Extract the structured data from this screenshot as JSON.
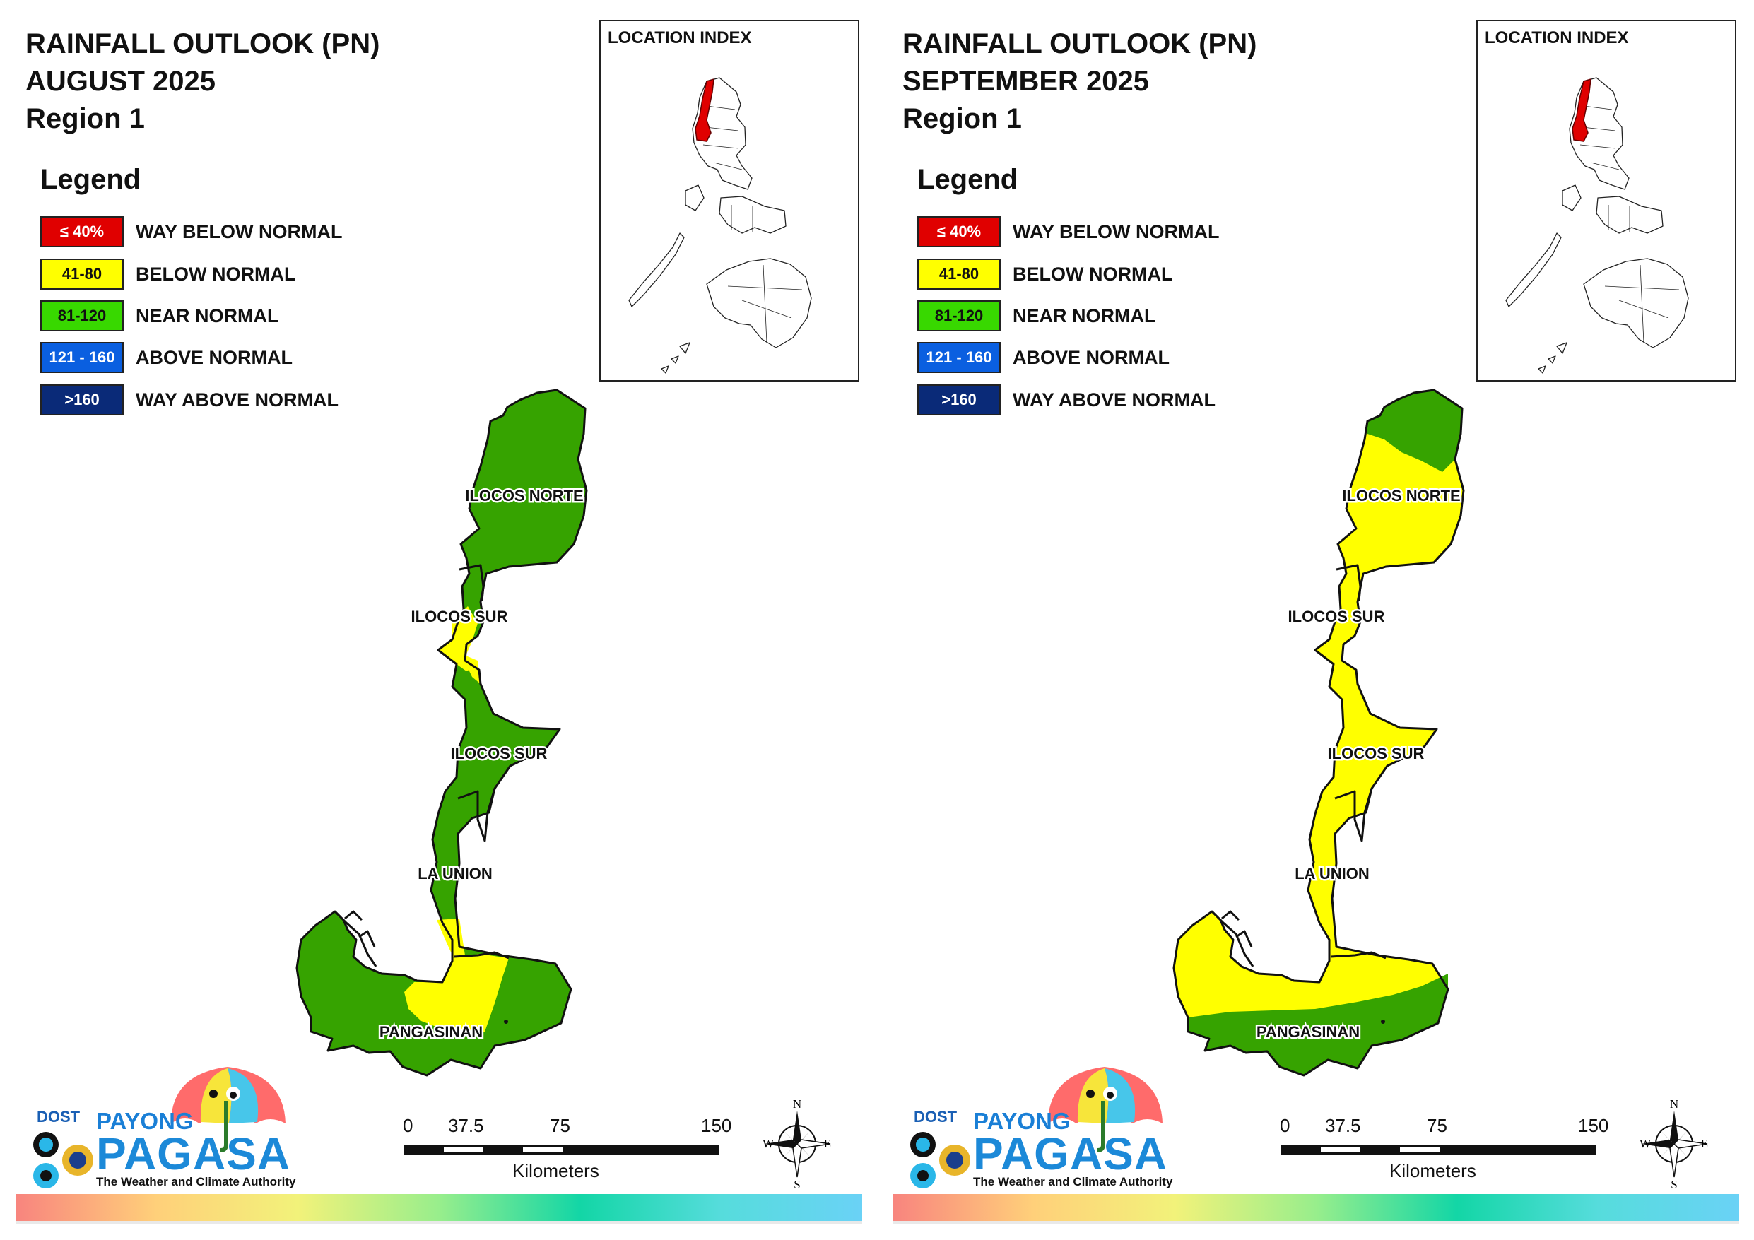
{
  "panels": [
    {
      "title": [
        "RAINFALL OUTLOOK (PN)",
        "AUGUST 2025",
        "Region 1"
      ],
      "legend": {
        "title": "Legend",
        "items": [
          {
            "range": "≤ 40%",
            "label": "WAY BELOW NORMAL",
            "color": "#e00000",
            "text_color": "#ffffff"
          },
          {
            "range": "41-80",
            "label": "BELOW NORMAL",
            "color": "#ffff00",
            "text_color": "#111111"
          },
          {
            "range": "81-120",
            "label": "NEAR NORMAL",
            "color": "#38d800",
            "text_color": "#111111"
          },
          {
            "range": "121 - 160",
            "label": "ABOVE NORMAL",
            "color": "#0a5fe0",
            "text_color": "#ffffff"
          },
          {
            "range": ">160",
            "label": "WAY ABOVE NORMAL",
            "color": "#0a2a78",
            "text_color": "#ffffff"
          }
        ]
      },
      "inset_title": "LOCATION INDEX",
      "provinces": [
        "ILOCOS NORTE",
        "ILOCOS SUR",
        "ILOCOS SUR",
        "LA UNION",
        "PANGASINAN"
      ],
      "map_colors": {
        "primary": "#36a300",
        "secondary": "#ffff00"
      },
      "region_categories": {
        "ilocos_norte": "NEAR NORMAL",
        "ilocos_sur_north": "BELOW NORMAL",
        "ilocos_sur_south": "NEAR NORMAL",
        "la_union": "NEAR NORMAL",
        "pangasinan": "NEAR NORMAL",
        "pangasinan_central": "BELOW NORMAL"
      },
      "scalebar": {
        "ticks": [
          "0",
          "37.5",
          "75",
          "150"
        ],
        "unit": "Kilometers"
      },
      "compass": {
        "n": "N",
        "s": "S",
        "e": "E",
        "w": "W"
      },
      "logo": {
        "dost": "DOST",
        "payong": "PAYONG",
        "pagasa": "PAGASA",
        "tagline": "The Weather and Climate Authority"
      }
    },
    {
      "title": [
        "RAINFALL OUTLOOK (PN)",
        "SEPTEMBER 2025",
        "Region 1"
      ],
      "legend": {
        "title": "Legend",
        "items": [
          {
            "range": "≤ 40%",
            "label": "WAY BELOW NORMAL",
            "color": "#e00000",
            "text_color": "#ffffff"
          },
          {
            "range": "41-80",
            "label": "BELOW NORMAL",
            "color": "#ffff00",
            "text_color": "#111111"
          },
          {
            "range": "81-120",
            "label": "NEAR NORMAL",
            "color": "#38d800",
            "text_color": "#111111"
          },
          {
            "range": "121 - 160",
            "label": "ABOVE NORMAL",
            "color": "#0a5fe0",
            "text_color": "#ffffff"
          },
          {
            "range": ">160",
            "label": "WAY ABOVE NORMAL",
            "color": "#0a2a78",
            "text_color": "#ffffff"
          }
        ]
      },
      "inset_title": "LOCATION INDEX",
      "provinces": [
        "ILOCOS NORTE",
        "ILOCOS SUR",
        "ILOCOS SUR",
        "LA UNION",
        "PANGASINAN"
      ],
      "map_colors": {
        "primary": "#ffff00",
        "secondary": "#36a300"
      },
      "region_categories": {
        "ilocos_norte_north_tip": "NEAR NORMAL",
        "ilocos_norte": "BELOW NORMAL",
        "ilocos_sur": "BELOW NORMAL",
        "la_union": "BELOW NORMAL",
        "pangasinan_north": "BELOW NORMAL",
        "pangasinan_south": "NEAR NORMAL"
      },
      "scalebar": {
        "ticks": [
          "0",
          "37.5",
          "75",
          "150"
        ],
        "unit": "Kilometers"
      },
      "compass": {
        "n": "N",
        "s": "S",
        "e": "E",
        "w": "W"
      },
      "logo": {
        "dost": "DOST",
        "payong": "PAYONG",
        "pagasa": "PAGASA",
        "tagline": "The Weather and Climate Authority"
      }
    }
  ]
}
